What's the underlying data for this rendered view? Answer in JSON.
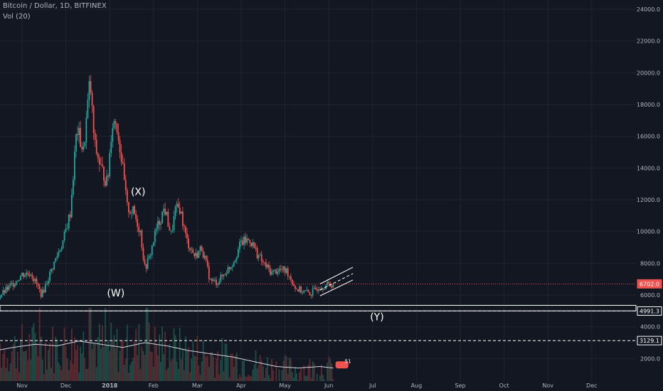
{
  "header": {
    "symbol": "Bitcoin / Dollar, 1D, BITFINEX",
    "indicator": "Vol (20)"
  },
  "theme": {
    "background": "#131722",
    "grid": "#1f2430",
    "text": "#b2b5be",
    "up": "#26a69a",
    "down": "#ef5350",
    "price_line": "#ef5350",
    "annotation": "#ffffff"
  },
  "price_axis": {
    "ticks": [
      2000,
      4000,
      6000,
      8000,
      10000,
      12000,
      14000,
      16000,
      18000,
      20000,
      22000,
      24000
    ]
  },
  "time_axis": {
    "labels": [
      "Nov",
      "Dec",
      "2018",
      "Feb",
      "Mar",
      "Apr",
      "May",
      "Jun",
      "Jul",
      "Aug",
      "Sep",
      "Oct",
      "Nov",
      "Dec"
    ]
  },
  "current_price": {
    "label": "6702.0",
    "value": 6702
  },
  "levels": [
    {
      "label": "4991.3",
      "value": 4991.3
    },
    {
      "label": "3129.1",
      "value": 3129.1
    }
  ],
  "boxes": [
    {
      "from": 5000,
      "to": 5350
    }
  ],
  "wave_labels": [
    {
      "text": "(X)",
      "month": 3.65,
      "price": 12300
    },
    {
      "text": "(W)",
      "month": 3.14,
      "price": 5900
    },
    {
      "text": "(Y)",
      "month": 9.1,
      "price": 4400
    }
  ],
  "volume_badge": "51",
  "chart_data": {
    "type": "candlestick",
    "title": "Bitcoin / Dollar, 1D, BITFINEX",
    "xlabel": "",
    "ylabel": "",
    "x_axis_labels": [
      "Nov",
      "Dec",
      "2018",
      "Feb",
      "Mar",
      "Apr",
      "May",
      "Jun",
      "Jul",
      "Aug",
      "Sep",
      "Oct",
      "Nov",
      "Dec"
    ],
    "y_range": [
      0,
      24000
    ],
    "y_ticks": [
      2000,
      4000,
      6000,
      8000,
      10000,
      12000,
      14000,
      16000,
      18000,
      20000,
      22000,
      24000
    ],
    "x_unit": "months since 2017-10-01",
    "close_path": [
      [
        0.4,
        5700
      ],
      [
        0.75,
        6600
      ],
      [
        1.0,
        7300
      ],
      [
        1.2,
        7400
      ],
      [
        1.45,
        6000
      ],
      [
        1.7,
        7800
      ],
      [
        1.95,
        9500
      ],
      [
        2.1,
        11200
      ],
      [
        2.25,
        16500
      ],
      [
        2.4,
        15000
      ],
      [
        2.55,
        19500
      ],
      [
        2.65,
        15500
      ],
      [
        2.8,
        14000
      ],
      [
        2.95,
        13000
      ],
      [
        3.05,
        16800
      ],
      [
        3.15,
        17000
      ],
      [
        3.25,
        15000
      ],
      [
        3.4,
        11500
      ],
      [
        3.55,
        11200
      ],
      [
        3.7,
        10000
      ],
      [
        3.8,
        7700
      ],
      [
        3.9,
        8300
      ],
      [
        4.05,
        10000
      ],
      [
        4.25,
        11500
      ],
      [
        4.4,
        9800
      ],
      [
        4.5,
        11300
      ],
      [
        4.6,
        11500
      ],
      [
        4.75,
        9500
      ],
      [
        4.95,
        8400
      ],
      [
        5.1,
        9000
      ],
      [
        5.3,
        6900
      ],
      [
        5.45,
        6800
      ],
      [
        5.55,
        7100
      ],
      [
        5.8,
        8000
      ],
      [
        6.0,
        9300
      ],
      [
        6.2,
        9500
      ],
      [
        6.35,
        8700
      ],
      [
        6.5,
        8000
      ],
      [
        6.7,
        7400
      ],
      [
        6.85,
        7600
      ],
      [
        7.05,
        7500
      ],
      [
        7.25,
        6400
      ],
      [
        7.45,
        6200
      ],
      [
        7.6,
        6100
      ],
      [
        7.75,
        6500
      ],
      [
        7.9,
        6600
      ],
      [
        8.05,
        6650
      ],
      [
        8.1,
        6702
      ]
    ],
    "volume_avg_path": [
      [
        0.0,
        2300
      ],
      [
        0.8,
        2700
      ],
      [
        1.3,
        2900
      ],
      [
        1.8,
        2800
      ],
      [
        2.3,
        3100
      ],
      [
        2.8,
        2900
      ],
      [
        3.3,
        2700
      ],
      [
        3.8,
        3000
      ],
      [
        4.3,
        2800
      ],
      [
        4.8,
        2500
      ],
      [
        5.3,
        2300
      ],
      [
        5.8,
        2100
      ],
      [
        6.3,
        1800
      ],
      [
        6.8,
        1500
      ],
      [
        7.3,
        1400
      ],
      [
        7.8,
        1500
      ],
      [
        8.1,
        1400
      ]
    ],
    "volume_peak_months": [
      1.4,
      2.55,
      3.85,
      2.9
    ]
  }
}
